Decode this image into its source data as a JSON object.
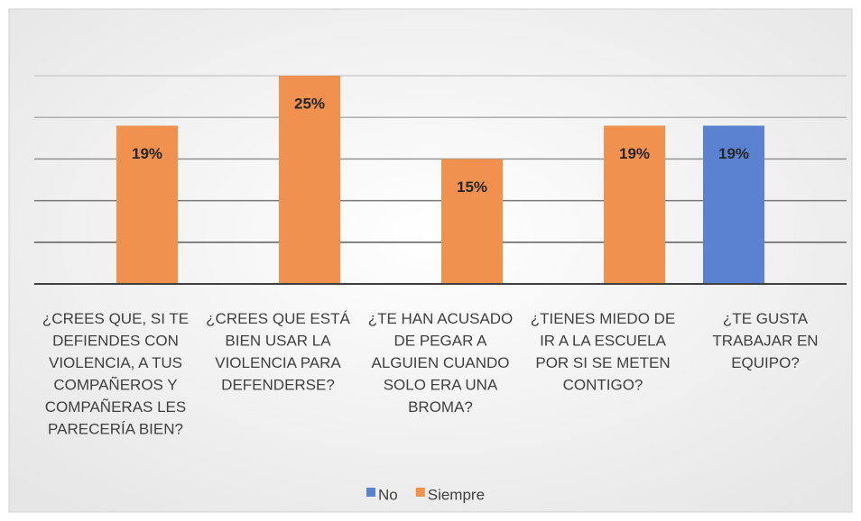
{
  "chart_data": {
    "type": "bar",
    "categories": [
      "¿CREES QUE, SI TE DEFIENDES CON VIOLENCIA, A TUS COMPAÑEROS Y COMPAÑERAS LES PARECERÍA BIEN?",
      "¿CREES QUE ESTÁ BIEN USAR LA VIOLENCIA PARA DEFENDERSE?",
      "¿TE HAN ACUSADO DE PEGAR A ALGUIEN CUANDO SOLO ERA UNA BROMA?",
      "¿TIENES MIEDO DE IR A LA ESCUELA POR SI SE METEN CONTIGO?",
      "¿TE GUSTA TRABAJAR EN EQUIPO?"
    ],
    "series": [
      {
        "name": "No",
        "color": "#5b82d1",
        "values": [
          null,
          null,
          null,
          null,
          19
        ],
        "value_labels": [
          null,
          null,
          null,
          null,
          "19%"
        ]
      },
      {
        "name": "Siempre",
        "color": "#f0914f",
        "values": [
          19,
          25,
          15,
          19,
          null
        ],
        "value_labels": [
          "19%",
          "25%",
          "15%",
          "19%",
          null
        ]
      }
    ],
    "ylim": [
      0,
      25
    ],
    "yticks": [
      0,
      5,
      10,
      15,
      20,
      25
    ],
    "grid": true,
    "legend": "bottom"
  }
}
